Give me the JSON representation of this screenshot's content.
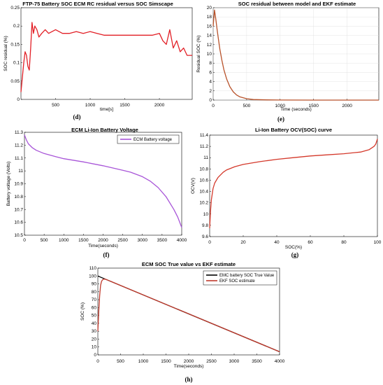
{
  "panels": {
    "d": {
      "caption": "(d)"
    },
    "e": {
      "caption": "(e)"
    },
    "f": {
      "caption": "(f)"
    },
    "g": {
      "caption": "(g)"
    },
    "h": {
      "caption": "(h)"
    }
  },
  "chart_data": [
    {
      "id": "d",
      "type": "line",
      "title": "FTP-75 Battery SOC ECM RC residual versus SOC Simscape",
      "xlabel": "time[s]",
      "ylabel": "SOC residual (%)",
      "xlim": [
        0,
        2474
      ],
      "ylim": [
        0,
        0.25
      ],
      "xticks": [
        500,
        1000,
        1500,
        2000
      ],
      "yticks": [
        0,
        0.05,
        0.1,
        0.15,
        0.2,
        0.25
      ],
      "xtick_labels": [
        "500",
        "1000",
        "1500",
        "2000"
      ],
      "ytick_labels": [
        "0",
        "0.05",
        "0.1",
        "0.15",
        "0.2",
        "0.25"
      ],
      "grid": false,
      "series": [
        {
          "color": "#e21f26",
          "x": [
            0,
            20,
            40,
            60,
            80,
            100,
            120,
            140,
            160,
            180,
            200,
            230,
            260,
            300,
            350,
            400,
            500,
            600,
            700,
            800,
            900,
            1000,
            1100,
            1200,
            1300,
            1400,
            1500,
            1600,
            1700,
            1800,
            1900,
            2000,
            2050,
            2100,
            2150,
            2200,
            2250,
            2300,
            2350,
            2400,
            2474
          ],
          "y": [
            0.02,
            0.06,
            0.1,
            0.13,
            0.12,
            0.09,
            0.08,
            0.14,
            0.21,
            0.18,
            0.2,
            0.19,
            0.17,
            0.18,
            0.19,
            0.18,
            0.19,
            0.18,
            0.18,
            0.185,
            0.18,
            0.185,
            0.18,
            0.175,
            0.175,
            0.175,
            0.175,
            0.175,
            0.175,
            0.175,
            0.175,
            0.18,
            0.16,
            0.15,
            0.19,
            0.14,
            0.16,
            0.13,
            0.14,
            0.12,
            0.12
          ]
        }
      ]
    },
    {
      "id": "e",
      "type": "line",
      "title": "SOC residual between model and EKF estimate",
      "xlabel": "Time (seconds)",
      "ylabel": "Residual SOC (%)",
      "xlim": [
        0,
        2474
      ],
      "ylim": [
        0,
        20
      ],
      "xticks": [
        0,
        500,
        1000,
        1500,
        2000
      ],
      "yticks": [
        0,
        2,
        4,
        6,
        8,
        10,
        12,
        14,
        16,
        18,
        20
      ],
      "xtick_labels": [
        "0",
        "500",
        "1000",
        "1500",
        "2000"
      ],
      "ytick_labels": [
        "0",
        "2",
        "4",
        "6",
        "8",
        "10",
        "12",
        "14",
        "16",
        "18",
        "20"
      ],
      "grid": true,
      "series": [
        {
          "color": "#b8522a",
          "x": [
            0,
            20,
            40,
            60,
            80,
            100,
            130,
            160,
            200,
            250,
            300,
            350,
            400,
            500,
            600,
            800,
            1000,
            1500,
            2000,
            2474
          ],
          "y": [
            16,
            19.5,
            17.5,
            15.2,
            13,
            11,
            8.6,
            6.6,
            4.6,
            2.9,
            1.8,
            1.1,
            0.7,
            0.3,
            0.12,
            0.05,
            0.02,
            0,
            0,
            0
          ]
        }
      ]
    },
    {
      "id": "f",
      "type": "line",
      "title": "ECM Li-Ion Battery  Voltage",
      "xlabel": "Time(seconds)",
      "ylabel": "Battery voltage (Volts)",
      "xlim": [
        0,
        4000
      ],
      "ylim": [
        10.5,
        11.3
      ],
      "xticks": [
        0,
        500,
        1000,
        1500,
        2000,
        2500,
        3000,
        3500,
        4000
      ],
      "yticks": [
        10.5,
        10.6,
        10.7,
        10.8,
        10.9,
        11,
        11.1,
        11.2,
        11.3
      ],
      "xtick_labels": [
        "0",
        "500",
        "1000",
        "1500",
        "2000",
        "2500",
        "3000",
        "3500",
        "4000"
      ],
      "ytick_labels": [
        "10.5",
        "10.6",
        "10.7",
        "10.8",
        "10.9",
        "11",
        "11.1",
        "11.2",
        "11.3"
      ],
      "grid": false,
      "legend_position": "top-right",
      "series": [
        {
          "name": "ECM Battery voltage",
          "color": "#a855d8",
          "x": [
            0,
            50,
            100,
            200,
            300,
            500,
            800,
            1000,
            1500,
            2000,
            2500,
            2700,
            3000,
            3200,
            3400,
            3600,
            3800,
            3900,
            4000
          ],
          "y": [
            11.28,
            11.24,
            11.21,
            11.18,
            11.16,
            11.135,
            11.11,
            11.095,
            11.07,
            11.04,
            11.005,
            10.99,
            10.955,
            10.92,
            10.87,
            10.8,
            10.7,
            10.64,
            10.56
          ]
        }
      ]
    },
    {
      "id": "g",
      "type": "line",
      "title": "Li-Ion Battery OCV(SOC) curve",
      "xlabel": "SOC(%)",
      "ylabel": "OCV(V)",
      "xlim": [
        0,
        100
      ],
      "ylim": [
        9.6,
        11.4
      ],
      "xticks": [
        0,
        20,
        40,
        60,
        80,
        100
      ],
      "yticks": [
        9.6,
        9.8,
        10,
        10.2,
        10.4,
        10.6,
        10.8,
        11,
        11.2,
        11.4
      ],
      "xtick_labels": [
        "0",
        "20",
        "40",
        "60",
        "80",
        "100"
      ],
      "ytick_labels": [
        "9.6",
        "9.8",
        "10",
        "10.2",
        "10.4",
        "10.6",
        "10.8",
        "11",
        "11.2",
        "11.4"
      ],
      "grid": false,
      "series": [
        {
          "color": "#d4382a",
          "x": [
            0,
            0.5,
            1,
            2,
            3,
            5,
            8,
            10,
            15,
            20,
            30,
            40,
            50,
            60,
            70,
            80,
            90,
            95,
            98,
            99,
            100
          ],
          "y": [
            9.75,
            10.05,
            10.25,
            10.45,
            10.55,
            10.65,
            10.74,
            10.78,
            10.84,
            10.88,
            10.93,
            10.97,
            11.0,
            11.03,
            11.05,
            11.07,
            11.1,
            11.14,
            11.2,
            11.24,
            11.33
          ]
        }
      ]
    },
    {
      "id": "h",
      "type": "line",
      "title": "ECM SOC True value vs EKF estimate",
      "xlabel": "Time(seconds)",
      "ylabel": "SOC (%)",
      "xlim": [
        0,
        4000
      ],
      "ylim": [
        0,
        110
      ],
      "xticks": [
        0,
        500,
        1000,
        1500,
        2000,
        2500,
        3000,
        3500,
        4000
      ],
      "yticks": [
        0,
        10,
        20,
        30,
        40,
        50,
        60,
        70,
        80,
        90,
        100,
        110
      ],
      "xtick_labels": [
        "0",
        "500",
        "1000",
        "1500",
        "2000",
        "2500",
        "3000",
        "3500",
        "4000"
      ],
      "ytick_labels": [
        "0",
        "10",
        "20",
        "30",
        "40",
        "50",
        "60",
        "70",
        "80",
        "90",
        "100",
        "110"
      ],
      "grid": false,
      "legend_position": "top-right",
      "series": [
        {
          "name": "EMC battery SOC True Value",
          "color": "#000000",
          "x": [
            0,
            4000
          ],
          "y": [
            100,
            4
          ]
        },
        {
          "name": "EKF SOC estimate",
          "color": "#c0392b",
          "x": [
            0,
            20,
            40,
            60,
            80,
            100,
            130,
            160,
            200,
            300,
            4000
          ],
          "y": [
            30,
            55,
            75,
            88,
            93,
            95,
            96,
            96,
            95.2,
            92.8,
            4
          ]
        }
      ]
    }
  ]
}
